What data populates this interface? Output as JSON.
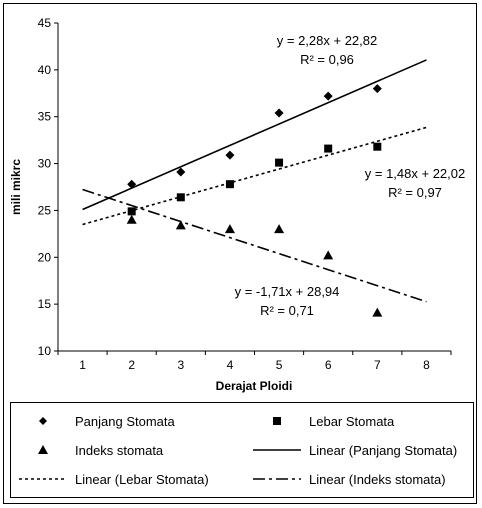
{
  "chart_data": {
    "type": "scatter",
    "xlabel": "Derajat Ploidi",
    "ylabel": "mili mikrc",
    "xlim": [
      0.5,
      8.5
    ],
    "ylim": [
      10,
      45
    ],
    "xticks": [
      1,
      2,
      3,
      4,
      5,
      6,
      7,
      8
    ],
    "yticks": [
      10,
      15,
      20,
      25,
      30,
      35,
      40,
      45
    ],
    "grid": false,
    "legend_position": "bottom",
    "series": [
      {
        "name": "Panjang Stomata",
        "marker": "diamond",
        "x": [
          2,
          3,
          4,
          5,
          6,
          7
        ],
        "y": [
          27.8,
          29.1,
          30.9,
          35.4,
          37.2,
          38.0
        ]
      },
      {
        "name": "Lebar Stomata",
        "marker": "square",
        "x": [
          2,
          3,
          4,
          5,
          6,
          7
        ],
        "y": [
          24.9,
          26.4,
          27.8,
          30.1,
          31.6,
          31.8
        ]
      },
      {
        "name": "Indeks stomata",
        "marker": "triangle",
        "x": [
          2,
          3,
          4,
          5,
          6,
          7
        ],
        "y": [
          24.0,
          23.4,
          23.0,
          23.0,
          20.2,
          14.1
        ]
      }
    ],
    "trendlines": [
      {
        "name": "Linear (Panjang Stomata)",
        "style": "solid",
        "slope": 2.28,
        "intercept": 22.82,
        "x_range": [
          1,
          8
        ],
        "equation": "y = 2,28x + 22,82",
        "r2": "R² = 0,96"
      },
      {
        "name": "Linear (Lebar Stomata)",
        "style": "dotted",
        "slope": 1.48,
        "intercept": 22.02,
        "x_range": [
          1,
          8
        ],
        "equation": "y = 1,48x + 22,02",
        "r2": "R² = 0,97"
      },
      {
        "name": "Linear (Indeks stomata)",
        "style": "dashdot",
        "slope": -1.71,
        "intercept": 28.94,
        "x_range": [
          1,
          8
        ],
        "equation": "y = -1,71x + 28,94",
        "r2": "R² = 0,71"
      }
    ]
  },
  "legend": {
    "items": [
      {
        "label": "Panjang Stomata",
        "symbol": "diamond"
      },
      {
        "label": "Lebar Stomata",
        "symbol": "square"
      },
      {
        "label": "Indeks stomata",
        "symbol": "triangle"
      },
      {
        "label": "Linear (Panjang Stomata)",
        "symbol": "solid-line"
      },
      {
        "label": "Linear (Lebar Stomata)",
        "symbol": "dotted-line"
      },
      {
        "label": "Linear (Indeks stomata)",
        "symbol": "dashdot-line"
      }
    ]
  }
}
